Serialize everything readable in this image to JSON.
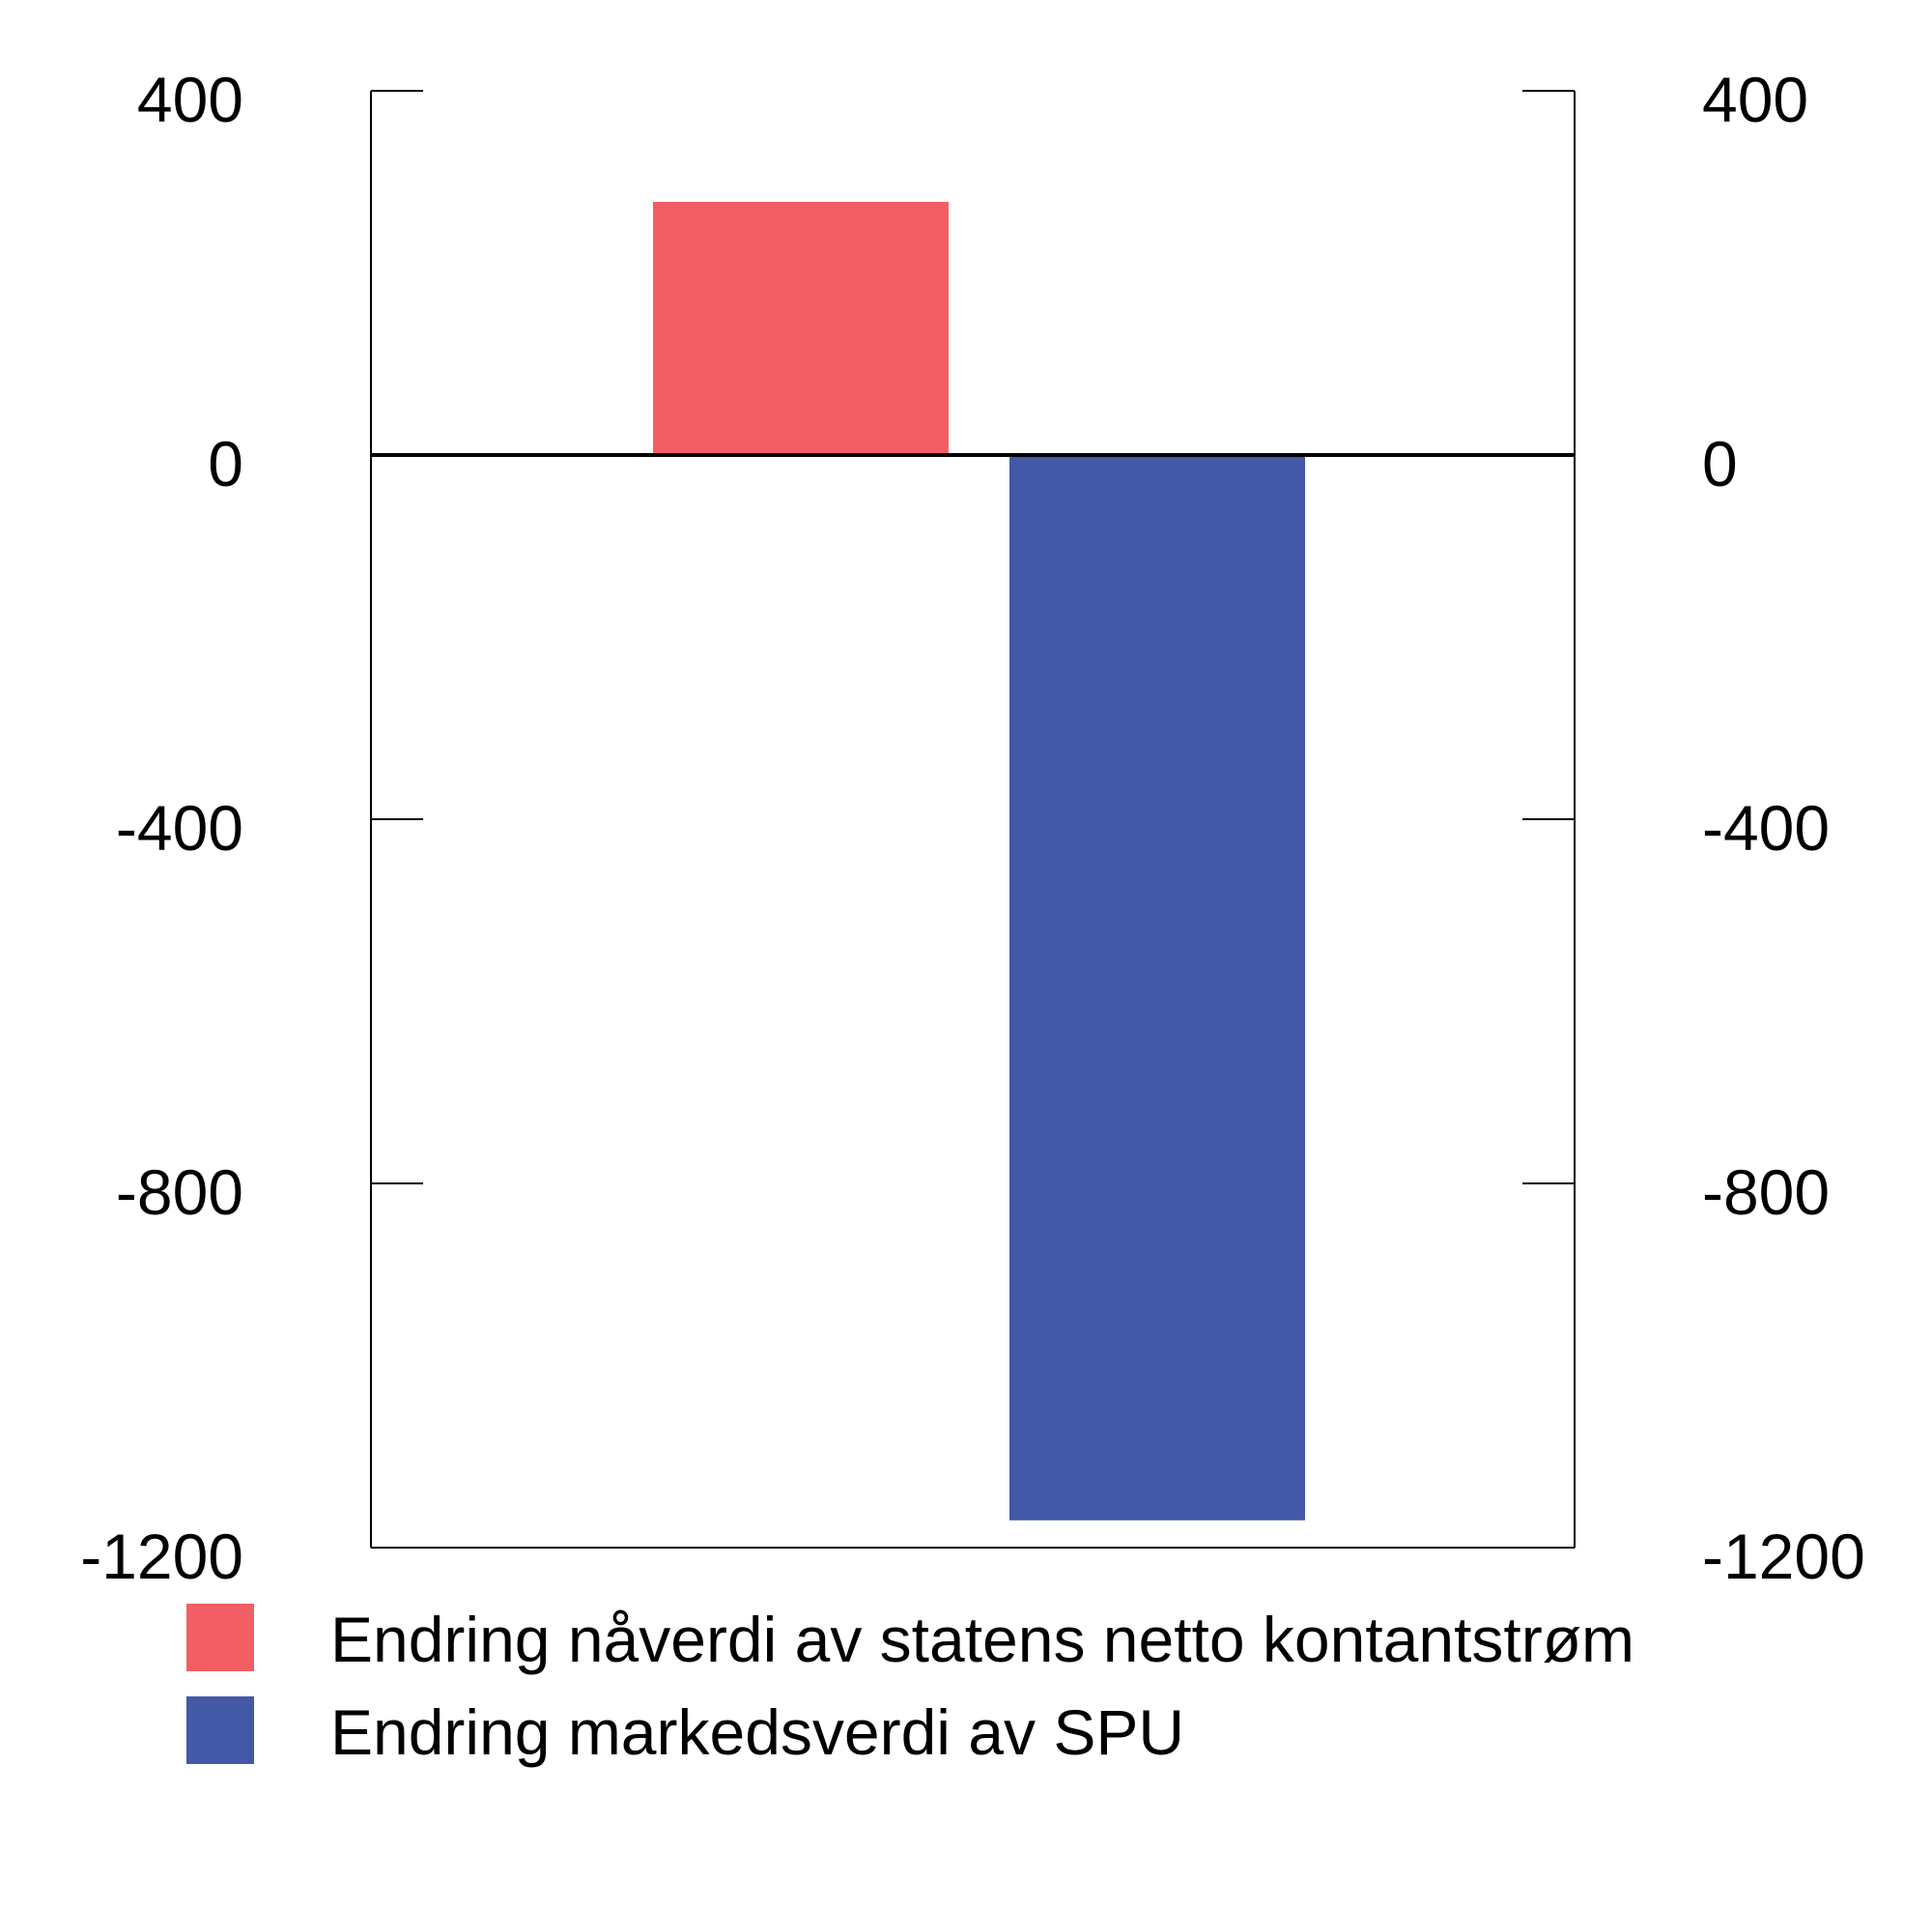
{
  "chart_data": {
    "type": "bar",
    "title": "",
    "xlabel": "",
    "ylabel": "",
    "ylim": [
      -1200,
      400
    ],
    "yticks": [
      400,
      0,
      -400,
      -800,
      -1200
    ],
    "ytick_labels": [
      "400",
      "0",
      "-400",
      "-800",
      "-1200"
    ],
    "dual_y_axis": true,
    "grid": false,
    "legend_position": "bottom",
    "series": [
      {
        "name": "Endring nåverdi av statens netto kontantstrøm",
        "value": 278,
        "color": "#F15F64"
      },
      {
        "name": "Endring markedsverdi av SPU",
        "value": -1170,
        "color": "#4358A6"
      }
    ]
  }
}
